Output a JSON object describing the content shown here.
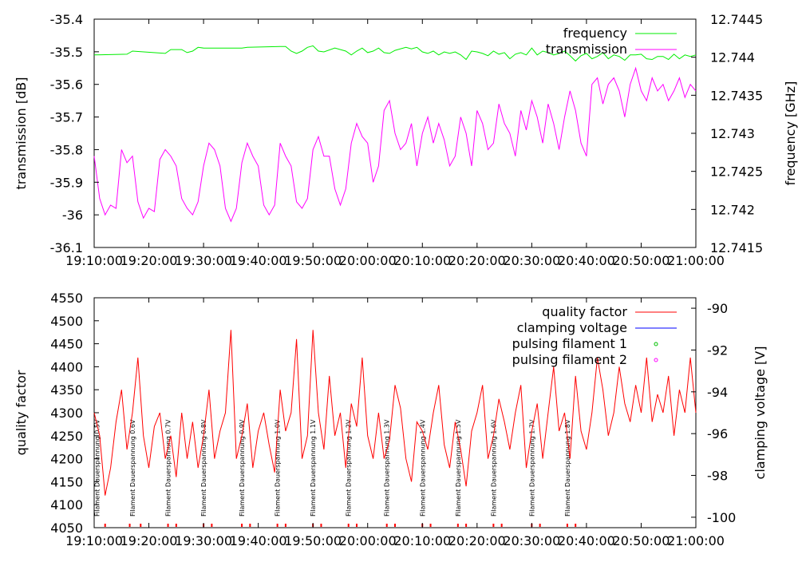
{
  "chart_data": [
    {
      "type": "line",
      "title": "",
      "xlabel": "",
      "ylabel": "transmission [dB]",
      "y2label": "frequency [GHz]",
      "ylim": [
        -36.1,
        -35.4
      ],
      "y2lim": [
        12.7415,
        12.7445
      ],
      "xlim_minutes": [
        0,
        110
      ],
      "x_tick_labels": [
        "19:10:00",
        "19:20:00",
        "19:30:00",
        "19:40:00",
        "19:50:00",
        "20:00:00",
        "20:10:00",
        "20:20:00",
        "20:30:00",
        "20:40:00",
        "20:50:00",
        "21:00:00"
      ],
      "y_tick_labels": [
        "-35.4",
        "-35.5",
        "-35.6",
        "-35.7",
        "-35.8",
        "-35.9",
        "-36",
        "-36.1"
      ],
      "y2_tick_labels": [
        "12.7445",
        "12.744",
        "12.7435",
        "12.743",
        "12.7425",
        "12.742",
        "12.7415"
      ],
      "legend_position": "top-right",
      "series": [
        {
          "name": "frequency",
          "axis": "y2",
          "color": "#00ee00",
          "x": [
            0,
            6,
            7,
            13,
            14,
            16,
            17,
            18,
            19,
            20,
            27,
            28,
            34,
            35,
            36,
            37,
            38,
            39,
            40,
            41,
            42,
            44,
            46,
            47,
            48,
            49,
            50,
            51,
            52,
            53,
            54,
            55,
            57,
            58,
            59,
            60,
            61,
            62,
            63,
            64,
            65,
            66,
            67,
            68,
            69,
            70,
            71,
            72,
            73,
            74,
            75,
            76,
            77,
            78,
            79,
            80,
            81,
            82,
            83,
            84,
            85,
            86,
            87,
            88,
            89,
            90,
            91,
            92,
            93,
            94,
            95,
            96,
            97,
            98,
            99,
            100,
            101,
            102,
            103,
            104,
            105,
            106,
            107,
            108,
            109,
            110
          ],
          "y": [
            12.74403,
            12.74404,
            12.74408,
            12.74405,
            12.7441,
            12.7441,
            12.74406,
            12.74408,
            12.74413,
            12.74412,
            12.74412,
            12.74413,
            12.74414,
            12.74414,
            12.74408,
            12.74405,
            12.74408,
            12.74413,
            12.74415,
            12.74408,
            12.74407,
            12.74412,
            12.74408,
            12.74403,
            12.74408,
            12.74412,
            12.74406,
            12.74408,
            12.74412,
            12.74406,
            12.74405,
            12.74409,
            12.74413,
            12.74411,
            12.74413,
            12.74407,
            12.74405,
            12.74408,
            12.74403,
            12.74407,
            12.74405,
            12.74407,
            12.74403,
            12.74397,
            12.74408,
            12.74407,
            12.74405,
            12.74402,
            12.74408,
            12.74404,
            12.74406,
            12.74398,
            12.74404,
            12.74406,
            12.74403,
            12.74412,
            12.74403,
            12.74408,
            12.74406,
            12.74403,
            12.74405,
            12.74408,
            12.74402,
            12.74395,
            12.74402,
            12.74405,
            12.74398,
            12.74401,
            12.74406,
            12.74398,
            12.74403,
            12.74401,
            12.74396,
            12.74403,
            12.74403,
            12.74404,
            12.74398,
            12.74397,
            12.74401,
            12.74401,
            12.74397,
            12.74404,
            12.74398,
            12.74403,
            12.74401,
            12.74403
          ]
        },
        {
          "name": "transmission",
          "axis": "y",
          "color": "#ff00ff",
          "x": [
            0,
            1,
            2,
            3,
            4,
            5,
            6,
            7,
            8,
            9,
            10,
            11,
            12,
            13,
            14,
            15,
            16,
            17,
            18,
            19,
            20,
            21,
            22,
            23,
            24,
            25,
            26,
            27,
            28,
            29,
            30,
            31,
            32,
            33,
            34,
            35,
            36,
            37,
            38,
            39,
            40,
            41,
            42,
            43,
            44,
            45,
            46,
            47,
            48,
            49,
            50,
            51,
            52,
            53,
            54,
            55,
            56,
            57,
            58,
            59,
            60,
            61,
            62,
            63,
            64,
            65,
            66,
            67,
            68,
            69,
            70,
            71,
            72,
            73,
            74,
            75,
            76,
            77,
            78,
            79,
            80,
            81,
            82,
            83,
            84,
            85,
            86,
            87,
            88,
            89,
            90,
            91,
            92,
            93,
            94,
            95,
            96,
            97,
            98,
            99,
            100,
            101,
            102,
            103,
            104,
            105,
            106,
            107,
            108,
            109,
            110
          ],
          "y": [
            -35.82,
            -35.95,
            -36.0,
            -35.97,
            -35.98,
            -35.8,
            -35.84,
            -35.82,
            -35.96,
            -36.01,
            -35.98,
            -35.99,
            -35.83,
            -35.8,
            -35.82,
            -35.85,
            -35.95,
            -35.98,
            -36.0,
            -35.96,
            -35.85,
            -35.78,
            -35.8,
            -35.85,
            -35.98,
            -36.02,
            -35.98,
            -35.84,
            -35.78,
            -35.82,
            -35.85,
            -35.97,
            -36.0,
            -35.97,
            -35.78,
            -35.82,
            -35.85,
            -35.96,
            -35.98,
            -35.95,
            -35.8,
            -35.76,
            -35.82,
            -35.82,
            -35.92,
            -35.97,
            -35.92,
            -35.78,
            -35.72,
            -35.76,
            -35.78,
            -35.9,
            -35.85,
            -35.68,
            -35.65,
            -35.75,
            -35.8,
            -35.78,
            -35.72,
            -35.85,
            -35.75,
            -35.7,
            -35.78,
            -35.72,
            -35.77,
            -35.85,
            -35.82,
            -35.7,
            -35.75,
            -35.85,
            -35.68,
            -35.72,
            -35.8,
            -35.78,
            -35.66,
            -35.72,
            -35.75,
            -35.82,
            -35.68,
            -35.74,
            -35.65,
            -35.7,
            -35.78,
            -35.66,
            -35.72,
            -35.8,
            -35.7,
            -35.62,
            -35.68,
            -35.78,
            -35.82,
            -35.6,
            -35.58,
            -35.66,
            -35.6,
            -35.58,
            -35.62,
            -35.7,
            -35.6,
            -35.55,
            -35.62,
            -35.65,
            -35.58,
            -35.62,
            -35.6,
            -35.65,
            -35.62,
            -35.58,
            -35.64,
            -35.6,
            -35.62
          ]
        }
      ]
    },
    {
      "type": "line",
      "title": "",
      "xlabel": "",
      "ylabel": "quality factor",
      "y2label": "clamping voltage [V]",
      "ylim": [
        4050,
        4550
      ],
      "y2lim": [
        -100.5,
        -89.5
      ],
      "xlim_minutes": [
        0,
        110
      ],
      "x_tick_labels": [
        "19:10:00",
        "19:20:00",
        "19:30:00",
        "19:40:00",
        "19:50:00",
        "20:00:00",
        "20:10:00",
        "20:20:00",
        "20:30:00",
        "20:40:00",
        "20:50:00",
        "21:00:00"
      ],
      "y_tick_labels": [
        "4550",
        "4500",
        "4450",
        "4400",
        "4350",
        "4300",
        "4250",
        "4200",
        "4150",
        "4100",
        "4050"
      ],
      "y2_tick_values": [
        -90,
        -92,
        -94,
        -96,
        -98,
        -100
      ],
      "y2_tick_labels": [
        "-90",
        "-92",
        "-94",
        "-96",
        "-98",
        "-100"
      ],
      "legend_position": "top-right",
      "series": [
        {
          "name": "quality factor",
          "axis": "y",
          "color": "#ff0000",
          "x": [
            0,
            1,
            2,
            3,
            4,
            5,
            6,
            7,
            8,
            9,
            10,
            11,
            12,
            13,
            14,
            15,
            16,
            17,
            18,
            19,
            20,
            21,
            22,
            23,
            24,
            25,
            26,
            27,
            28,
            29,
            30,
            31,
            32,
            33,
            34,
            35,
            36,
            37,
            38,
            39,
            40,
            41,
            42,
            43,
            44,
            45,
            46,
            47,
            48,
            49,
            50,
            51,
            52,
            53,
            54,
            55,
            56,
            57,
            58,
            59,
            60,
            61,
            62,
            63,
            64,
            65,
            66,
            67,
            68,
            69,
            70,
            71,
            72,
            73,
            74,
            75,
            76,
            77,
            78,
            79,
            80,
            81,
            82,
            83,
            84,
            85,
            86,
            87,
            88,
            89,
            90,
            91,
            92,
            93,
            94,
            95,
            96,
            97,
            98,
            99,
            100,
            101,
            102,
            103,
            104,
            105,
            106,
            107,
            108,
            109,
            110
          ],
          "y": [
            4300,
            4250,
            4120,
            4180,
            4280,
            4350,
            4220,
            4300,
            4420,
            4250,
            4180,
            4270,
            4300,
            4200,
            4250,
            4160,
            4300,
            4200,
            4280,
            4180,
            4250,
            4350,
            4200,
            4260,
            4300,
            4480,
            4200,
            4250,
            4320,
            4180,
            4260,
            4300,
            4230,
            4170,
            4350,
            4260,
            4300,
            4460,
            4200,
            4250,
            4480,
            4300,
            4220,
            4380,
            4250,
            4300,
            4180,
            4320,
            4270,
            4420,
            4250,
            4200,
            4300,
            4200,
            4240,
            4360,
            4310,
            4200,
            4150,
            4280,
            4260,
            4220,
            4300,
            4360,
            4230,
            4180,
            4280,
            4220,
            4140,
            4260,
            4300,
            4360,
            4200,
            4250,
            4330,
            4280,
            4220,
            4300,
            4360,
            4180,
            4260,
            4320,
            4200,
            4300,
            4400,
            4260,
            4300,
            4200,
            4380,
            4260,
            4220,
            4300,
            4420,
            4350,
            4250,
            4300,
            4400,
            4320,
            4280,
            4360,
            4300,
            4420,
            4280,
            4340,
            4300,
            4380,
            4250,
            4350,
            4300,
            4420,
            4300
          ]
        },
        {
          "name": "clamping voltage",
          "axis": "y2",
          "color": "#0000ff",
          "x": [],
          "y": []
        },
        {
          "name": "pulsing filament 1",
          "axis": "y2",
          "color": "#00c000",
          "x": [],
          "y": []
        },
        {
          "name": "pulsing filament 2",
          "axis": "y2",
          "color": "#ff00ff",
          "x": [],
          "y": []
        }
      ],
      "annotations": [
        {
          "x": 0.5,
          "text": "Filament Dauerspannung 0.5V"
        },
        {
          "x": 7,
          "text": "Filament Dauerspannung 0.6V"
        },
        {
          "x": 13.5,
          "text": "Filament Dauerspannung 0.7V"
        },
        {
          "x": 20,
          "text": "Filament Dauerspannung 0.8V"
        },
        {
          "x": 27,
          "text": "Filament Dauerspannung 0.9V"
        },
        {
          "x": 33.5,
          "text": "Filament Dauerspannung 1.0V"
        },
        {
          "x": 40,
          "text": "Filament Dauerspannung 1.1V"
        },
        {
          "x": 46.5,
          "text": "Filament Dauerspannung 1.2V"
        },
        {
          "x": 53.5,
          "text": "Filament Dauerspannung 1.3V"
        },
        {
          "x": 60,
          "text": "Filament Dauerspannung 1.4V"
        },
        {
          "x": 66.5,
          "text": "Filament Dauerspannung 1.5V"
        },
        {
          "x": 73,
          "text": "Filament Dauerspannung 1.6V"
        },
        {
          "x": 80,
          "text": "Filament Dauerspannung 1.7V"
        },
        {
          "x": 86.5,
          "text": "Filament Dauerspannung 1.8V"
        }
      ],
      "marker_x": [
        2,
        6.5,
        8.5,
        13.5,
        15,
        20,
        21.5,
        27,
        28.5,
        33.5,
        35,
        40,
        41.5,
        46.5,
        48,
        53.5,
        55,
        60,
        61.5,
        66.5,
        68,
        73,
        74.5,
        80,
        81.5,
        86.5,
        88
      ]
    }
  ]
}
